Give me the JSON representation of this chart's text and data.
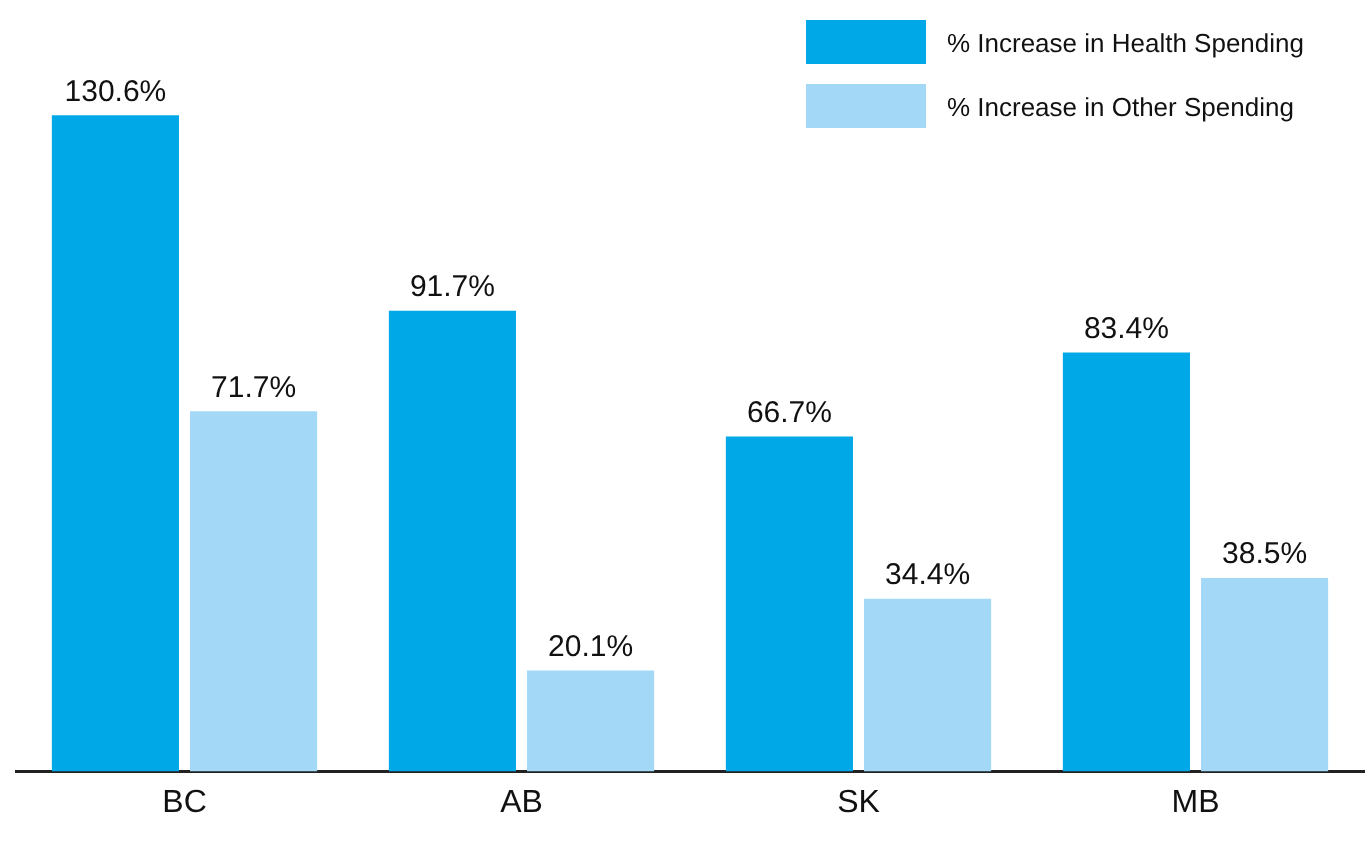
{
  "chart_data": {
    "type": "bar",
    "categories": [
      "BC",
      "AB",
      "SK",
      "MB"
    ],
    "series": [
      {
        "name": "% Increase in Health Spending",
        "color": "#00a8e8",
        "values": [
          130.6,
          91.7,
          66.7,
          83.4
        ],
        "value_labels": [
          "130.6%",
          "91.7%",
          "66.7%",
          "83.4%"
        ]
      },
      {
        "name": "% Increase in Other Spending",
        "color": "#a3d9f7",
        "values": [
          71.7,
          20.1,
          34.4,
          38.5
        ],
        "value_labels": [
          "71.7%",
          "20.1%",
          "34.4%",
          "38.5%"
        ]
      }
    ],
    "legend": "top right",
    "grid": false
  }
}
